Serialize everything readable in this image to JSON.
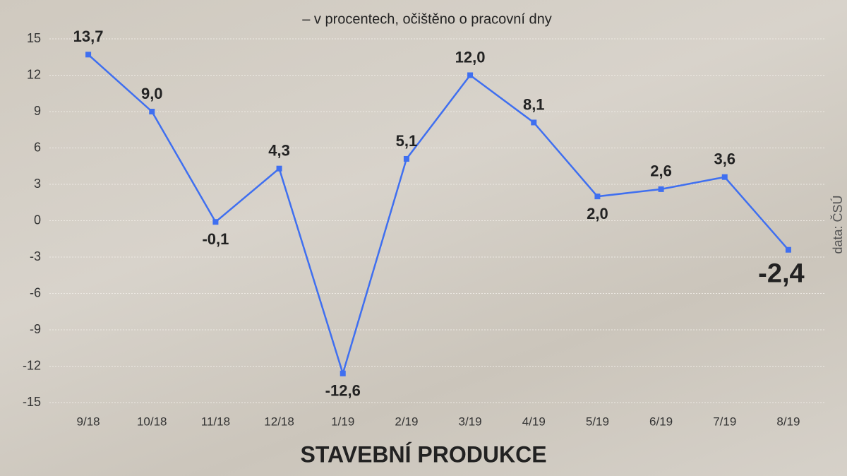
{
  "chart_data": {
    "type": "line",
    "title": "STAVEBNÍ PRODUKCE",
    "subtitle": "– v procentech, očištěno o pracovní dny",
    "source": "data: ČSÚ",
    "categories": [
      "9/18",
      "10/18",
      "11/18",
      "12/18",
      "1/19",
      "2/19",
      "3/19",
      "4/19",
      "5/19",
      "6/19",
      "7/19",
      "8/19"
    ],
    "values": [
      13.7,
      9.0,
      -0.1,
      4.3,
      -12.6,
      5.1,
      12.0,
      8.1,
      2.0,
      2.6,
      3.6,
      -2.4
    ],
    "value_labels": [
      "13,7",
      "9,0",
      "-0,1",
      "4,3",
      "-12,6",
      "5,1",
      "12,0",
      "8,1",
      "2,0",
      "2,6",
      "3,6",
      "-2,4"
    ],
    "color": "#3f6ff0",
    "ylim": [
      -15,
      15
    ],
    "yticks": [
      -15,
      -12,
      -9,
      -6,
      -3,
      0,
      3,
      6,
      9,
      12,
      15
    ],
    "grid": true
  }
}
